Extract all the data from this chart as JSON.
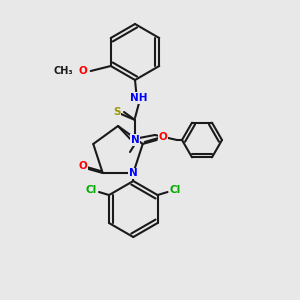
{
  "bg_color": "#e8e8e8",
  "bond_color": "#1a1a1a",
  "bond_lw": 1.5,
  "atom_colors": {
    "N": "#0000ff",
    "O": "#ff0000",
    "S": "#999900",
    "Cl": "#00aa00",
    "C": "#1a1a1a",
    "H": "#1a1a1a"
  },
  "font_size": 7.5
}
